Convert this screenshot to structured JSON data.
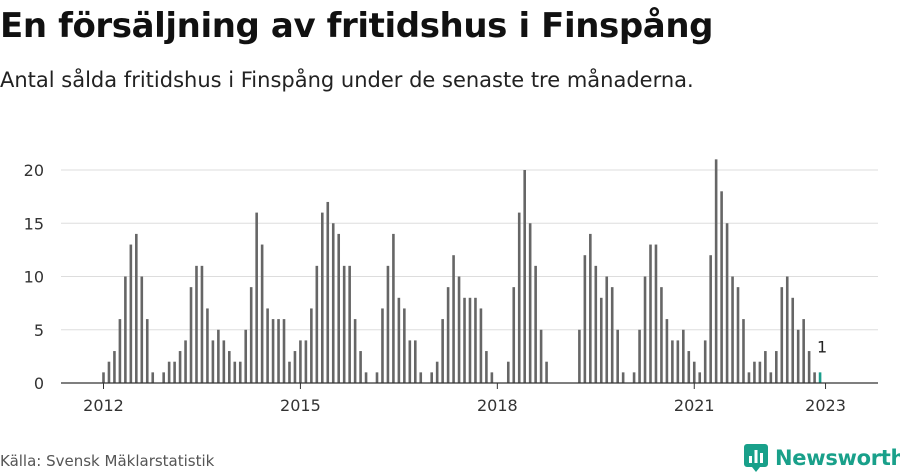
{
  "title": "En försäljning av fritidshus i Finspång",
  "subtitle": "Antal sålda fritidshus i Finspång under de senaste tre månaderna.",
  "source": "Källa: Svensk Mäklarstatistik",
  "brand": {
    "name": "Newsworthy",
    "icon": "bar-chart-logo-icon"
  },
  "colors": {
    "bar": "#666666",
    "highlight": "#1a9e8c",
    "grid": "#dddddd",
    "axis": "#333333"
  },
  "chart_data": {
    "type": "bar",
    "xlabel": "",
    "ylabel": "",
    "ylim": [
      0,
      21
    ],
    "yticks": [
      0,
      5,
      10,
      15,
      20
    ],
    "xticks": [
      "2012",
      "2015",
      "2018",
      "2021",
      "2023"
    ],
    "grid": true,
    "highlight_label": "1",
    "values": [
      1,
      2,
      3,
      6,
      10,
      13,
      14,
      10,
      6,
      1,
      0,
      1,
      2,
      2,
      3,
      4,
      9,
      11,
      11,
      7,
      4,
      5,
      4,
      3,
      2,
      2,
      5,
      9,
      16,
      13,
      7,
      6,
      6,
      6,
      2,
      3,
      4,
      4,
      7,
      11,
      16,
      17,
      15,
      14,
      11,
      11,
      6,
      3,
      1,
      0,
      1,
      7,
      11,
      14,
      8,
      7,
      4,
      4,
      1,
      0,
      1,
      2,
      6,
      9,
      12,
      10,
      8,
      8,
      8,
      7,
      3,
      1,
      0,
      0,
      2,
      9,
      16,
      20,
      15,
      11,
      5,
      2,
      0,
      0,
      0,
      0,
      0,
      5,
      12,
      14,
      11,
      8,
      10,
      9,
      5,
      1,
      0,
      1,
      5,
      10,
      13,
      13,
      9,
      6,
      4,
      4,
      5,
      3,
      2,
      1,
      4,
      12,
      21,
      18,
      15,
      10,
      9,
      6,
      1,
      2,
      2,
      3,
      1,
      3,
      9,
      10,
      8,
      5,
      6,
      3,
      1,
      1
    ]
  }
}
